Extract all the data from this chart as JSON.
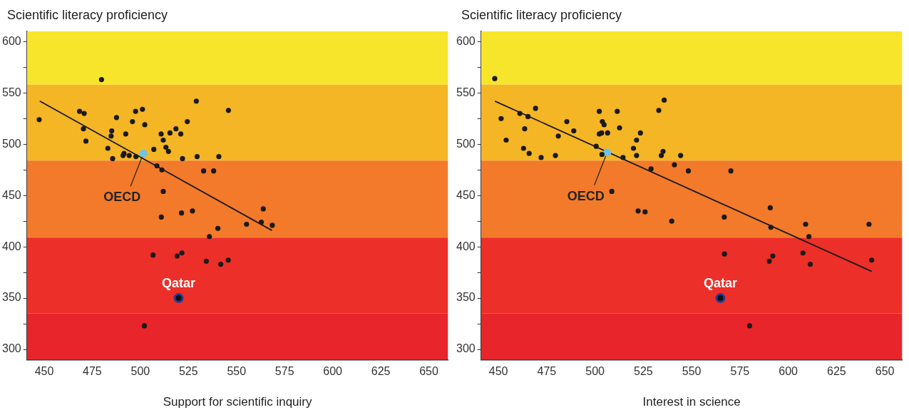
{
  "chart_data": [
    {
      "type": "scatter",
      "ylabel": "Scientific literacy proficiency",
      "xlabel": "Support for scientific inquiry",
      "xlim": [
        441,
        660
      ],
      "ylim": [
        290,
        610
      ],
      "xticks": [
        450,
        475,
        500,
        525,
        550,
        575,
        600,
        625,
        650
      ],
      "yticks": [
        300,
        {
          "value": 325,
          "label": null
        },
        350,
        {
          "value": 375,
          "label": null
        },
        400,
        {
          "value": 425,
          "label": null
        },
        450,
        {
          "value": 475,
          "label": null
        },
        500,
        {
          "value": 525,
          "label": null
        },
        550,
        {
          "value": 575,
          "label": null
        },
        600
      ],
      "grid": false,
      "legend": false,
      "marker": "circle",
      "bands": [
        {
          "axis": "y",
          "from": 558,
          "to": 610,
          "color": "#f7e52b"
        },
        {
          "axis": "y",
          "from": 484,
          "to": 558,
          "color": "#f5b625"
        },
        {
          "axis": "y",
          "from": 409,
          "to": 484,
          "color": "#f27a2a"
        },
        {
          "axis": "y",
          "from": 335,
          "to": 409,
          "color": "#ec2f28"
        },
        {
          "axis": "y",
          "from": 290,
          "to": 335,
          "color": "#e8252a"
        }
      ],
      "series": [
        {
          "color": "#1a1a1a",
          "x": [
            447.4,
            479.8,
            468.4,
            470.8,
            470.4,
            471.7,
            483.1,
            485.6,
            484.8,
            485.1,
            487.6,
            492.4,
            491.0,
            491.5,
            494.2,
            497.7,
            495.9,
            497.5,
            501.1,
            502.3,
            507.0,
            508.6,
            511.2,
            510.8,
            511.9,
            513.3,
            514.6,
            515.4,
            518.5,
            521.0,
            521.9,
            524.4,
            529.1,
            529.5,
            532.9,
            538.1,
            540.8,
            545.8,
            511.9,
            510.9,
            521.4,
            527.1,
            555.2,
            562.9,
            563.9,
            568.6,
            540.3,
            535.9,
            506.6,
            519.1,
            521.6,
            534.3,
            541.8,
            545.7,
            502.1
          ],
          "values": [
            524,
            563,
            532,
            530,
            515,
            503,
            496,
            486,
            508,
            513,
            526,
            510,
            489,
            491,
            489,
            488,
            522,
            532,
            534,
            519,
            495,
            479,
            475,
            510,
            504,
            497,
            493,
            511,
            515,
            510,
            486,
            522,
            542,
            488,
            474,
            474,
            488,
            533,
            454,
            429,
            433,
            435,
            422,
            424,
            437,
            421,
            418,
            410,
            392,
            391,
            394,
            386,
            383,
            387,
            323
          ]
        },
        {
          "name": "OECD",
          "color": "#6ec3e6",
          "x": [
            501.6
          ],
          "values": [
            491
          ]
        },
        {
          "name": "Qatar",
          "color": "#2b3990",
          "x": [
            519.9
          ],
          "values": [
            350
          ]
        },
        {
          "type": "line",
          "marker": "none",
          "color": "#1a1a1a",
          "x": [
            447.7,
            568.4
          ],
          "values": [
            542,
            416
          ]
        }
      ]
    },
    {
      "type": "scatter",
      "ylabel": "Scientific literacy proficiency",
      "xlabel": "Interest in science",
      "xlim": [
        441,
        659
      ],
      "ylim": [
        290,
        610
      ],
      "xticks": [
        450,
        475,
        500,
        525,
        550,
        575,
        600,
        625,
        650
      ],
      "yticks": [
        300,
        {
          "value": 325,
          "label": null
        },
        350,
        {
          "value": 375,
          "label": null
        },
        400,
        {
          "value": 425,
          "label": null
        },
        450,
        {
          "value": 475,
          "label": null
        },
        500,
        {
          "value": 525,
          "label": null
        },
        550,
        {
          "value": 575,
          "label": null
        },
        600
      ],
      "grid": false,
      "legend": false,
      "marker": "circle",
      "bands": [
        {
          "axis": "y",
          "from": 558,
          "to": 610,
          "color": "#f7e52b"
        },
        {
          "axis": "y",
          "from": 484,
          "to": 558,
          "color": "#f5b625"
        },
        {
          "axis": "y",
          "from": 409,
          "to": 484,
          "color": "#f27a2a"
        },
        {
          "axis": "y",
          "from": 335,
          "to": 409,
          "color": "#ec2f28"
        },
        {
          "axis": "y",
          "from": 290,
          "to": 335,
          "color": "#e8252a"
        }
      ],
      "series": [
        {
          "color": "#1a1a1a",
          "x": [
            448.1,
            451.4,
            454.0,
            461.1,
            465.3,
            469.2,
            463.6,
            463.0,
            465.9,
            472.1,
            479.5,
            481.0,
            485.4,
            489.0,
            500.6,
            502.2,
            503.8,
            504.7,
            502.2,
            503.4,
            506.5,
            503.6,
            511.5,
            512.7,
            514.5,
            519.9,
            521.5,
            523.5,
            521.5,
            533.0,
            535.8,
            535.2,
            534.3,
            544.3,
            529.0,
            541.1,
            548.3,
            508.7,
            522.3,
            525.9,
            539.7,
            570.3,
            566.9,
            590.7,
            591.0,
            609.0,
            610.7,
            641.8,
            567.0,
            592.0,
            590.2,
            607.6,
            611.4,
            643.2,
            580.0
          ],
          "values": [
            564,
            525,
            504,
            530,
            527,
            535,
            515,
            496,
            491,
            487,
            489,
            508,
            522,
            513,
            498,
            532,
            522,
            519,
            510,
            511,
            511,
            490,
            532,
            516,
            487,
            496,
            504,
            511,
            489,
            533,
            543,
            493,
            489,
            489,
            476,
            480,
            474,
            454,
            435,
            434,
            425,
            474,
            429,
            438,
            419,
            422,
            410,
            422,
            393,
            391,
            386,
            394,
            383,
            387,
            323
          ]
        },
        {
          "name": "OECD",
          "color": "#6ec3e6",
          "x": [
            506.3
          ],
          "values": [
            492
          ]
        },
        {
          "name": "Qatar",
          "color": "#2b3990",
          "x": [
            564.9
          ],
          "values": [
            350
          ]
        },
        {
          "type": "line",
          "marker": "none",
          "color": "#1a1a1a",
          "x": [
            448.2,
            643.2
          ],
          "values": [
            542,
            376
          ]
        }
      ]
    }
  ]
}
